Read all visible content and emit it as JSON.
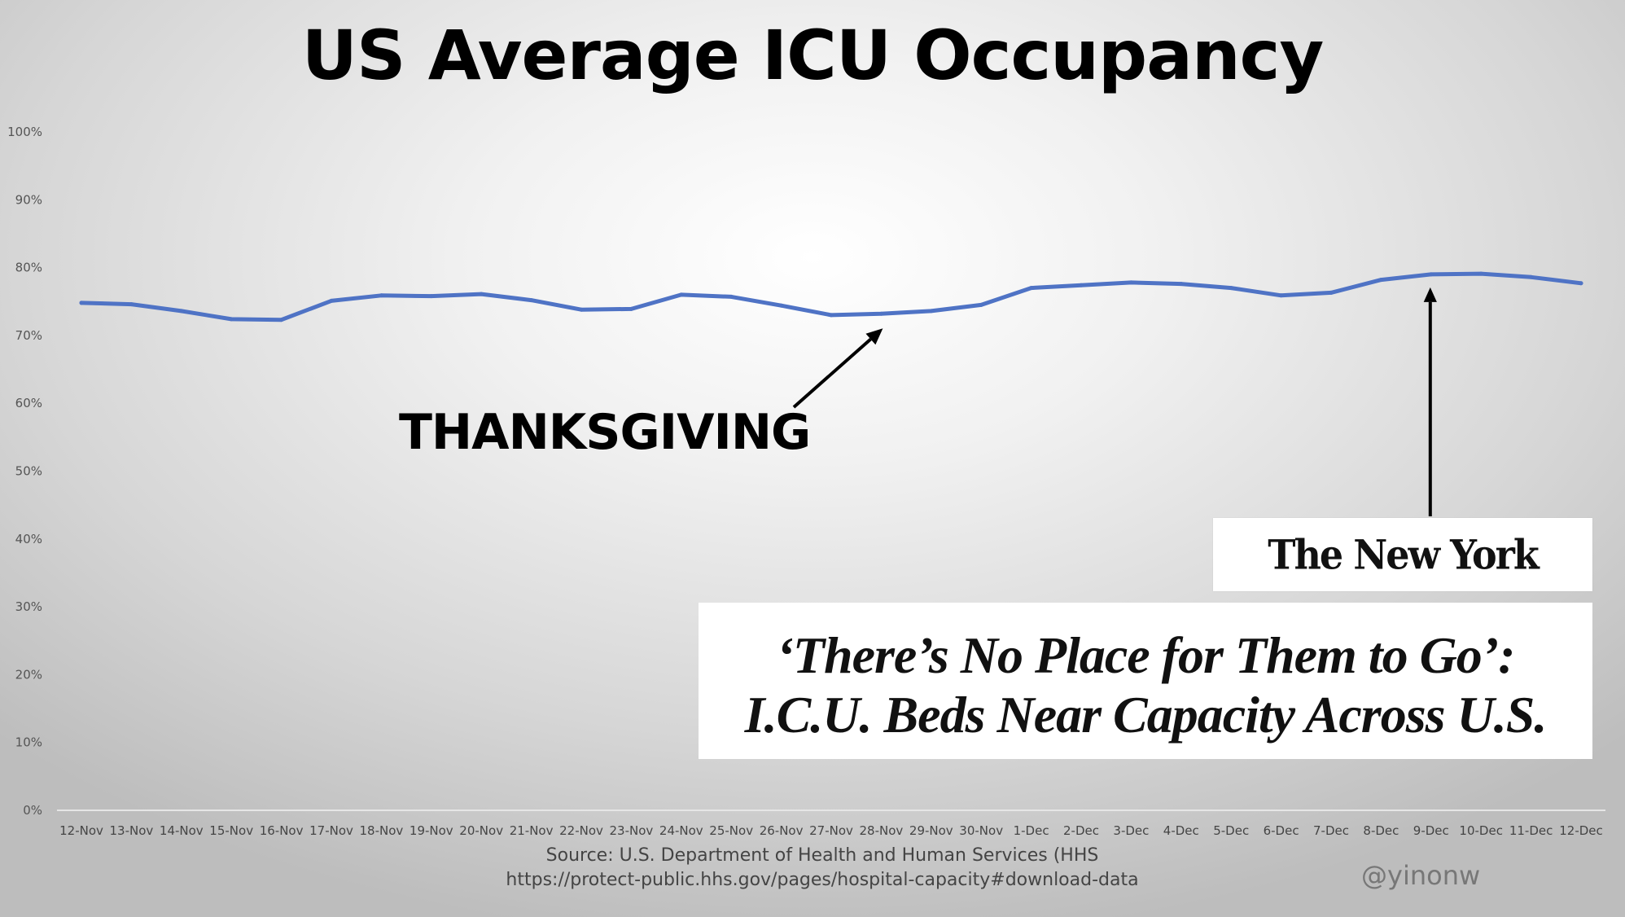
{
  "chart_data": {
    "type": "line",
    "title": "US Average ICU Occupancy",
    "x": [
      "12-Nov",
      "13-Nov",
      "14-Nov",
      "15-Nov",
      "16-Nov",
      "17-Nov",
      "18-Nov",
      "19-Nov",
      "20-Nov",
      "21-Nov",
      "22-Nov",
      "23-Nov",
      "24-Nov",
      "25-Nov",
      "26-Nov",
      "27-Nov",
      "28-Nov",
      "29-Nov",
      "30-Nov",
      "1-Dec",
      "2-Dec",
      "3-Dec",
      "4-Dec",
      "5-Dec",
      "6-Dec",
      "7-Dec",
      "8-Dec",
      "9-Dec",
      "10-Dec",
      "11-Dec",
      "12-Dec"
    ],
    "series": [
      {
        "values": [
          74.8,
          74.6,
          73.6,
          72.4,
          72.3,
          75.1,
          75.9,
          75.8,
          76.1,
          75.2,
          73.8,
          73.9,
          76.0,
          75.7,
          74.4,
          73.0,
          73.2,
          73.6,
          74.5,
          77.0,
          77.4,
          77.8,
          77.6,
          77.0,
          75.9,
          76.3,
          78.2,
          79.0,
          79.1,
          78.6,
          77.7
        ]
      }
    ],
    "yticks": [
      "0%",
      "10%",
      "20%",
      "30%",
      "40%",
      "50%",
      "60%",
      "70%",
      "80%",
      "90%",
      "100%"
    ],
    "ylim": [
      0,
      100
    ],
    "grid": false,
    "legend": "none",
    "line_color": "#4f73c5",
    "annotations": {
      "thanksgiving": "THANKSGIVING",
      "thanksgiving_target": "28-Nov",
      "nyt_logo": "The New York Times",
      "nyt_target": "9-Dec",
      "headline": "‘There’s No Place for Them to Go’: I.C.U. Beds Near Capacity Across U.S."
    }
  },
  "source_line1": "Source: U.S. Department of Health and Human Services (HHS",
  "source_line2": "https://protect-public.hhs.gov/pages/hospital-capacity#download-data",
  "handle": "@yinonw"
}
